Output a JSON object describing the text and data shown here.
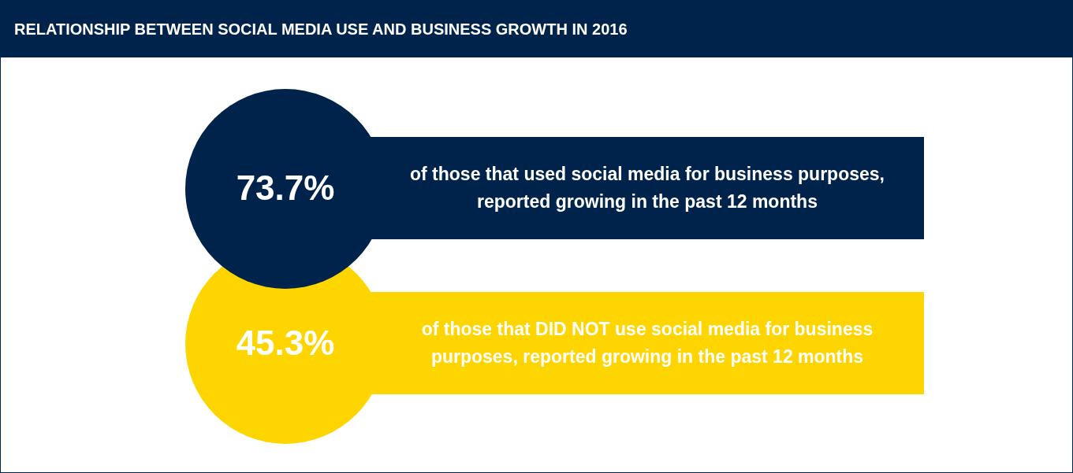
{
  "chart_data": {
    "type": "other",
    "title": "RELATIONSHIP BETWEEN SOCIAL MEDIA USE AND BUSINESS GROWTH IN 2016",
    "categories": [
      "of those that used social media for business purposes, reported growing in the past 12 months",
      "of those that DID NOT use social media for business purposes, reported growing in the past 12 months"
    ],
    "values": [
      73.7,
      45.3
    ],
    "value_labels": [
      "73.7%",
      "45.3%"
    ],
    "colors": [
      "#00234b",
      "#ffd500"
    ]
  }
}
